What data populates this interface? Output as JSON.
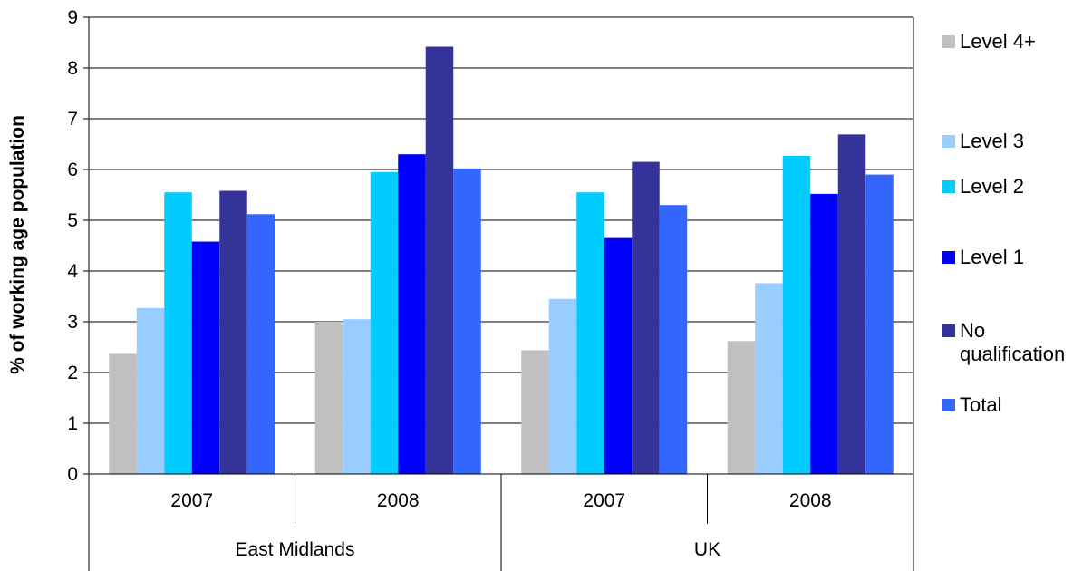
{
  "chart_data": {
    "type": "bar",
    "ylabel": "% of working age population",
    "ylim": [
      0,
      9
    ],
    "yticks": [
      "0",
      "1",
      "2",
      "3",
      "4",
      "5",
      "6",
      "7",
      "8",
      "9"
    ],
    "categories": [
      "2007",
      "2008",
      "2007",
      "2008"
    ],
    "groups": [
      {
        "label": "East Midlands",
        "span": 2
      },
      {
        "label": "UK",
        "span": 2
      }
    ],
    "grid": true,
    "legend_position": "right",
    "series": [
      {
        "name": "Level 4+",
        "color": "#c0c0c0",
        "values": [
          2.37,
          3.0,
          2.44,
          2.62
        ]
      },
      {
        "name": "Level 3",
        "color": "#99ccff",
        "values": [
          3.27,
          3.05,
          3.45,
          3.76
        ]
      },
      {
        "name": "Level 2",
        "color": "#00ccff",
        "values": [
          5.55,
          5.95,
          5.55,
          6.27
        ]
      },
      {
        "name": "Level 1",
        "color": "#0000ff",
        "values": [
          4.58,
          6.3,
          4.65,
          5.52
        ]
      },
      {
        "name": "No\nqualification",
        "color": "#333399",
        "values": [
          5.58,
          8.42,
          6.15,
          6.69
        ]
      },
      {
        "name": "Total",
        "color": "#3366ff",
        "values": [
          5.12,
          6.02,
          5.3,
          5.9
        ]
      }
    ]
  }
}
